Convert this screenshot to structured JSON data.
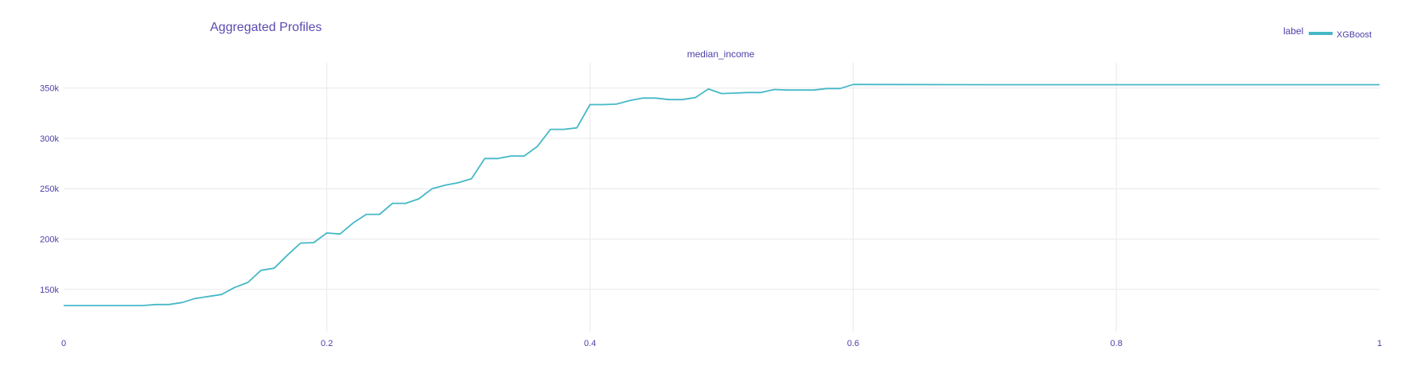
{
  "chart_data": {
    "type": "line",
    "title": "Aggregated Profiles",
    "subplot_title": "median_income",
    "legend": {
      "title": "label",
      "position": "top-right",
      "entries": [
        "XGBoost"
      ]
    },
    "xlim": [
      0,
      1
    ],
    "ylim": [
      108000,
      375000
    ],
    "x_ticks": [
      0,
      0.2,
      0.4,
      0.6,
      0.8,
      1
    ],
    "x_tick_labels": [
      "0",
      "0.2",
      "0.4",
      "0.6",
      "0.8",
      "1"
    ],
    "y_ticks": [
      150000,
      200000,
      250000,
      300000,
      350000
    ],
    "y_tick_labels": [
      "150k",
      "200k",
      "250k",
      "300k",
      "350k"
    ],
    "grid": true,
    "series": [
      {
        "name": "XGBoost",
        "color": "#46b8c6",
        "x": [
          0,
          0.01,
          0.02,
          0.03,
          0.04,
          0.05,
          0.06,
          0.07,
          0.08,
          0.09,
          0.1,
          0.11,
          0.12,
          0.13,
          0.14,
          0.15,
          0.16,
          0.17,
          0.18,
          0.19,
          0.2,
          0.21,
          0.22,
          0.23,
          0.24,
          0.25,
          0.26,
          0.27,
          0.28,
          0.29,
          0.3,
          0.31,
          0.32,
          0.33,
          0.34,
          0.35,
          0.36,
          0.37,
          0.38,
          0.39,
          0.4,
          0.41,
          0.42,
          0.43,
          0.44,
          0.45,
          0.46,
          0.47,
          0.48,
          0.49,
          0.5,
          0.51,
          0.52,
          0.53,
          0.54,
          0.55,
          0.56,
          0.57,
          0.58,
          0.59,
          0.6,
          0.7,
          0.8,
          0.9,
          1.0
        ],
        "y": [
          134000,
          134000,
          134000,
          134000,
          134000,
          134000,
          134000,
          135000,
          135000,
          137000,
          141000,
          143000,
          145000,
          152000,
          157000,
          169000,
          171000,
          184000,
          196000,
          196500,
          206000,
          205000,
          216000,
          224500,
          224500,
          235500,
          235500,
          240000,
          250000,
          253500,
          256000,
          260000,
          280000,
          280000,
          282500,
          282500,
          292000,
          309000,
          309000,
          310500,
          333500,
          333500,
          334000,
          337500,
          340000,
          340000,
          338500,
          338500,
          340500,
          349000,
          344500,
          345000,
          345500,
          345500,
          348500,
          348000,
          348000,
          348000,
          349500,
          349500,
          353500,
          353300,
          353300,
          353300,
          353300
        ]
      }
    ]
  }
}
